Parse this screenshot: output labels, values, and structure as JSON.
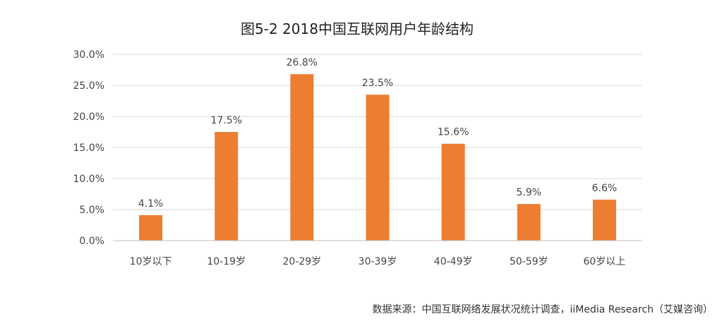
{
  "chart_data": {
    "type": "bar",
    "title": "图5-2 2018中国互联网用户年龄结构",
    "categories": [
      "10岁以下",
      "10-19岁",
      "20-29岁",
      "30-39岁",
      "40-49岁",
      "50-59岁",
      "60岁以上"
    ],
    "values": [
      4.1,
      17.5,
      26.8,
      23.5,
      15.6,
      5.9,
      6.6
    ],
    "data_labels": [
      "4.1%",
      "17.5%",
      "26.8%",
      "23.5%",
      "15.6%",
      "5.9%",
      "6.6%"
    ],
    "y_ticks": [
      0,
      5,
      10,
      15,
      20,
      25,
      30
    ],
    "y_tick_labels": [
      "0.0%",
      "5.0%",
      "10.0%",
      "15.0%",
      "20.0%",
      "25.0%",
      "30.0%"
    ],
    "ylim": [
      0,
      30
    ],
    "xlabel": "",
    "ylabel": "",
    "grid": true,
    "legend": "none",
    "bar_color": "#ed7d31"
  },
  "source": "数据来源：中国互联网络发展状况统计调查，iiMedia Research（艾媒咨询）"
}
